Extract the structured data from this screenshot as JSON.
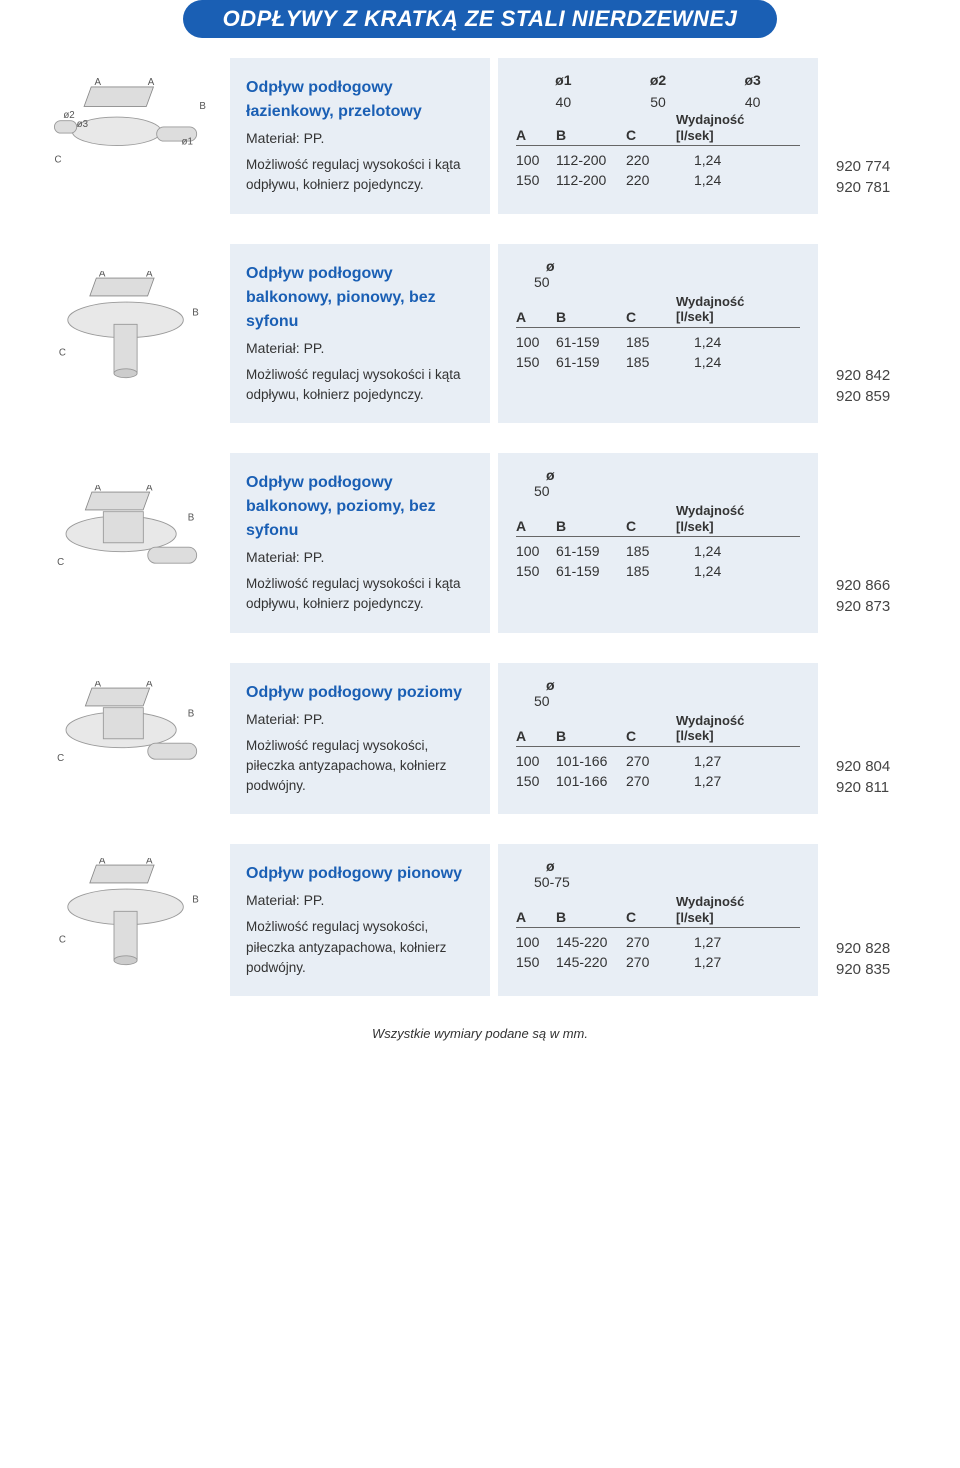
{
  "banner": "ODPŁYWY Z KRATKĄ ZE STALI NIERDZEWNEJ",
  "colors": {
    "banner_bg": "#1a5fb4",
    "banner_text": "#ffffff",
    "panel_bg": "#e8eef5",
    "title_color": "#1a5fb4",
    "text_color": "#333333"
  },
  "labels": {
    "material_prefix": "Materiał: ",
    "wydajnosc": "Wydajność",
    "wydajnosc_unit": "[l/sek]",
    "A": "A",
    "B": "B",
    "C": "C",
    "o": "ø",
    "o1": "ø1",
    "o2": "ø2",
    "o3": "ø3"
  },
  "footer": "Wszystkie wymiary podane są w mm.",
  "products": [
    {
      "title": "Odpływ podłogowy łazienkowy, przelotowy",
      "material": "PP.",
      "desc": "Możliwość regulacj wysokości i kąta odpływu, kołnierz pojedynczy.",
      "diagram_labels": [
        "A",
        "A",
        "B",
        "C",
        "ø1",
        "ø2",
        "ø3"
      ],
      "diameters_header": [
        "ø1",
        "ø2",
        "ø3"
      ],
      "diameters": [
        "40",
        "50",
        "40"
      ],
      "cols": [
        "A",
        "B",
        "C"
      ],
      "rows": [
        {
          "A": "100",
          "B": "112-200",
          "C": "220",
          "W": "1,24",
          "code": "920 774"
        },
        {
          "A": "150",
          "B": "112-200",
          "C": "220",
          "W": "1,24",
          "code": "920 781"
        }
      ]
    },
    {
      "title": "Odpływ podłogowy balkonowy, pionowy, bez syfonu",
      "material": "PP.",
      "desc": "Możliwość regulacj wysokości i kąta odpływu, kołnierz pojedynczy.",
      "diagram_labels": [
        "A",
        "A",
        "B",
        "C"
      ],
      "diameters_header": [
        "ø"
      ],
      "diameters": [
        "50"
      ],
      "cols": [
        "A",
        "B",
        "C"
      ],
      "rows": [
        {
          "A": "100",
          "B": "61-159",
          "C": "185",
          "W": "1,24",
          "code": "920 842"
        },
        {
          "A": "150",
          "B": "61-159",
          "C": "185",
          "W": "1,24",
          "code": "920 859"
        }
      ]
    },
    {
      "title": "Odpływ podłogowy balkonowy, poziomy, bez syfonu",
      "material": "PP.",
      "desc": "Możliwość regulacj wysokości i kąta odpływu, kołnierz pojedynczy.",
      "diagram_labels": [
        "A",
        "A",
        "B",
        "C"
      ],
      "diameters_header": [
        "ø"
      ],
      "diameters": [
        "50"
      ],
      "cols": [
        "A",
        "B",
        "C"
      ],
      "rows": [
        {
          "A": "100",
          "B": "61-159",
          "C": "185",
          "W": "1,24",
          "code": "920 866"
        },
        {
          "A": "150",
          "B": "61-159",
          "C": "185",
          "W": "1,24",
          "code": "920 873"
        }
      ]
    },
    {
      "title": "Odpływ podłogowy poziomy",
      "material": "PP.",
      "desc": "Możliwość regulacj wysokości, piłeczka antyzapachowa, kołnierz podwójny.",
      "diagram_labels": [
        "A",
        "A",
        "B",
        "C"
      ],
      "diameters_header": [
        "ø"
      ],
      "diameters": [
        "50"
      ],
      "cols": [
        "A",
        "B",
        "C"
      ],
      "rows": [
        {
          "A": "100",
          "B": "101-166",
          "C": "270",
          "W": "1,27",
          "code": "920 804"
        },
        {
          "A": "150",
          "B": "101-166",
          "C": "270",
          "W": "1,27",
          "code": "920 811"
        }
      ]
    },
    {
      "title": "Odpływ podłogowy pionowy",
      "material": "PP.",
      "desc": "Możliwość regulacj wysokości, piłeczka antyzapachowa, kołnierz podwójny.",
      "diagram_labels": [
        "A",
        "A",
        "B",
        "C"
      ],
      "diameters_header": [
        "ø"
      ],
      "diameters": [
        "50-75"
      ],
      "cols": [
        "A",
        "B",
        "C"
      ],
      "rows": [
        {
          "A": "100",
          "B": "145-220",
          "C": "270",
          "W": "1,27",
          "code": "920 828"
        },
        {
          "A": "150",
          "B": "145-220",
          "C": "270",
          "W": "1,27",
          "code": "920 835"
        }
      ]
    }
  ]
}
